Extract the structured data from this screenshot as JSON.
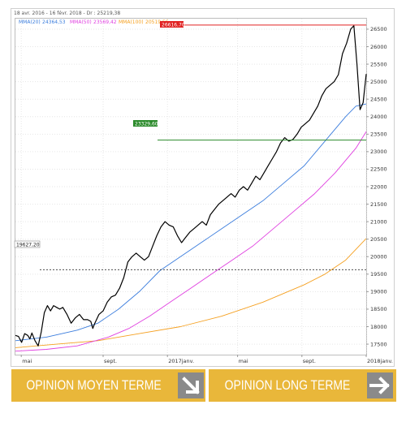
{
  "header": {
    "range_label": "18 avr. 2016 - 16 févr. 2018 - Dr : 25219,38",
    "mma20_label": "MMA(20)",
    "mma20_value": "24364,53",
    "mma50_label": "MMA(50)",
    "mma50_value": "23569,42",
    "mma100_label": "MMA(100)",
    "mma100_value": "20519,56"
  },
  "levels": {
    "resistance": "26616,70",
    "support": "23329,60",
    "reference": "19627,20"
  },
  "colors": {
    "price": "#000000",
    "mma20": "#3b7ddd",
    "mma50": "#e040e0",
    "mma100": "#f5a020",
    "resistance": "#e02020",
    "support": "#2a8a2a",
    "button": "#e9b73a"
  },
  "chart_data": {
    "type": "line",
    "x_labels": [
      "mai",
      "sept.",
      "2017janv.",
      "mai",
      "sept.",
      "2018janv."
    ],
    "y_ticks": [
      "17500",
      "18000",
      "18500",
      "19000",
      "19500",
      "20000",
      "20500",
      "21000",
      "21500",
      "22000",
      "22500",
      "23000",
      "23500",
      "24000",
      "24500",
      "25000",
      "25500",
      "26000",
      "26500"
    ],
    "ylim": [
      17200,
      26800
    ],
    "series": [
      {
        "name": "price",
        "color": "#000000",
        "values": [
          [
            0,
            17750
          ],
          [
            3,
            17720
          ],
          [
            6,
            17550
          ],
          [
            9,
            17800
          ],
          [
            12,
            17750
          ],
          [
            14,
            17650
          ],
          [
            16,
            17820
          ],
          [
            19,
            17600
          ],
          [
            22,
            17450
          ],
          [
            25,
            17850
          ],
          [
            28,
            18400
          ],
          [
            31,
            18600
          ],
          [
            34,
            18450
          ],
          [
            37,
            18600
          ],
          [
            40,
            18550
          ],
          [
            43,
            18500
          ],
          [
            46,
            18550
          ],
          [
            50,
            18350
          ],
          [
            54,
            18100
          ],
          [
            58,
            18250
          ],
          [
            62,
            18350
          ],
          [
            66,
            18200
          ],
          [
            70,
            18200
          ],
          [
            73,
            18150
          ],
          [
            75,
            17950
          ],
          [
            77,
            18100
          ],
          [
            81,
            18350
          ],
          [
            85,
            18450
          ],
          [
            89,
            18700
          ],
          [
            93,
            18850
          ],
          [
            97,
            18900
          ],
          [
            101,
            19100
          ],
          [
            105,
            19400
          ],
          [
            109,
            19850
          ],
          [
            113,
            20000
          ],
          [
            117,
            20100
          ],
          [
            121,
            20000
          ],
          [
            125,
            19900
          ],
          [
            129,
            20000
          ],
          [
            133,
            20300
          ],
          [
            137,
            20600
          ],
          [
            141,
            20850
          ],
          [
            145,
            21000
          ],
          [
            149,
            20900
          ],
          [
            153,
            20850
          ],
          [
            157,
            20600
          ],
          [
            161,
            20400
          ],
          [
            165,
            20550
          ],
          [
            169,
            20700
          ],
          [
            173,
            20800
          ],
          [
            177,
            20900
          ],
          [
            181,
            21000
          ],
          [
            185,
            20900
          ],
          [
            189,
            21200
          ],
          [
            193,
            21350
          ],
          [
            197,
            21500
          ],
          [
            201,
            21600
          ],
          [
            205,
            21700
          ],
          [
            209,
            21800
          ],
          [
            213,
            21700
          ],
          [
            217,
            21900
          ],
          [
            221,
            22000
          ],
          [
            225,
            21900
          ],
          [
            229,
            22100
          ],
          [
            233,
            22300
          ],
          [
            237,
            22200
          ],
          [
            241,
            22400
          ],
          [
            245,
            22600
          ],
          [
            249,
            22800
          ],
          [
            253,
            23000
          ],
          [
            257,
            23250
          ],
          [
            261,
            23400
          ],
          [
            265,
            23300
          ],
          [
            269,
            23350
          ],
          [
            273,
            23500
          ],
          [
            277,
            23700
          ],
          [
            281,
            23800
          ],
          [
            285,
            23900
          ],
          [
            289,
            24100
          ],
          [
            293,
            24300
          ],
          [
            297,
            24600
          ],
          [
            301,
            24800
          ],
          [
            305,
            24900
          ],
          [
            309,
            25000
          ],
          [
            313,
            25200
          ],
          [
            317,
            25800
          ],
          [
            321,
            26100
          ],
          [
            325,
            26500
          ],
          [
            328,
            26600
          ],
          [
            331,
            25500
          ],
          [
            334,
            24200
          ],
          [
            337,
            24400
          ],
          [
            340,
            25219
          ]
        ]
      },
      {
        "name": "MMA(20)",
        "color": "#3b7ddd",
        "values": [
          [
            0,
            17600
          ],
          [
            30,
            17700
          ],
          [
            60,
            17900
          ],
          [
            80,
            18100
          ],
          [
            100,
            18500
          ],
          [
            120,
            19000
          ],
          [
            140,
            19600
          ],
          [
            160,
            20000
          ],
          [
            180,
            20400
          ],
          [
            200,
            20800
          ],
          [
            220,
            21200
          ],
          [
            240,
            21600
          ],
          [
            260,
            22100
          ],
          [
            280,
            22600
          ],
          [
            300,
            23300
          ],
          [
            320,
            24000
          ],
          [
            330,
            24300
          ],
          [
            340,
            24364
          ]
        ]
      },
      {
        "name": "MMA(50)",
        "color": "#e040e0",
        "values": [
          [
            0,
            17300
          ],
          [
            30,
            17350
          ],
          [
            60,
            17450
          ],
          [
            90,
            17700
          ],
          [
            110,
            17950
          ],
          [
            130,
            18300
          ],
          [
            150,
            18700
          ],
          [
            170,
            19100
          ],
          [
            190,
            19500
          ],
          [
            210,
            19900
          ],
          [
            230,
            20300
          ],
          [
            250,
            20800
          ],
          [
            270,
            21300
          ],
          [
            290,
            21800
          ],
          [
            310,
            22400
          ],
          [
            330,
            23100
          ],
          [
            340,
            23569
          ]
        ]
      },
      {
        "name": "MMA(100)",
        "color": "#f5a020",
        "values": [
          [
            0,
            17400
          ],
          [
            40,
            17500
          ],
          [
            80,
            17600
          ],
          [
            120,
            17800
          ],
          [
            160,
            18000
          ],
          [
            200,
            18300
          ],
          [
            240,
            18700
          ],
          [
            280,
            19200
          ],
          [
            300,
            19500
          ],
          [
            320,
            19900
          ],
          [
            340,
            20519
          ]
        ]
      }
    ]
  },
  "footer": {
    "medium_term_label": "OPINION MOYEN TERME",
    "long_term_label": "OPINION LONG TERME",
    "medium_term_icon": "arrow-down-right-icon",
    "long_term_icon": "arrow-right-icon"
  }
}
